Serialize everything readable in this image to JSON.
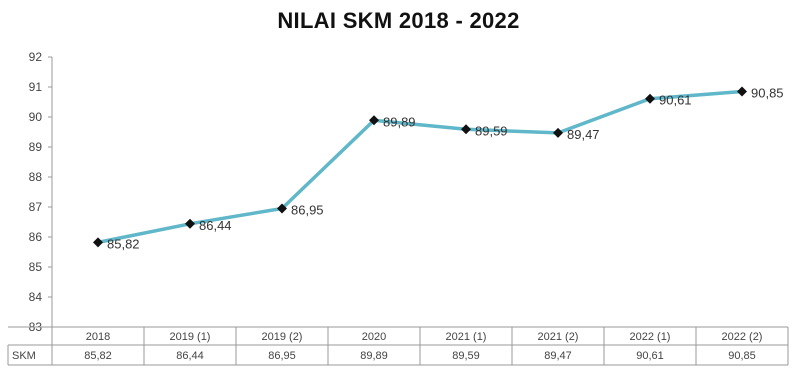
{
  "chart_data": {
    "type": "line",
    "title": "NILAI SKM 2018 - 2022",
    "categories": [
      "2018",
      "2019 (1)",
      "2019 (2)",
      "2020",
      "2021 (1)",
      "2021 (2)",
      "2022 (1)",
      "2022 (2)"
    ],
    "series": [
      {
        "name": "SKM",
        "values": [
          85.82,
          86.44,
          86.95,
          89.89,
          89.59,
          89.47,
          90.61,
          90.85
        ],
        "labels": [
          "85,82",
          "86,44",
          "86,95",
          "89,89",
          "89,59",
          "89,47",
          "90,61",
          "90,85"
        ]
      }
    ],
    "ylim": [
      83,
      92
    ],
    "yticks": [
      "83",
      "84",
      "85",
      "86",
      "87",
      "88",
      "89",
      "90",
      "91",
      "92"
    ],
    "grid": false,
    "data_table": true,
    "colors": {
      "line": "#5fb7c9",
      "marker": "#111111"
    }
  }
}
